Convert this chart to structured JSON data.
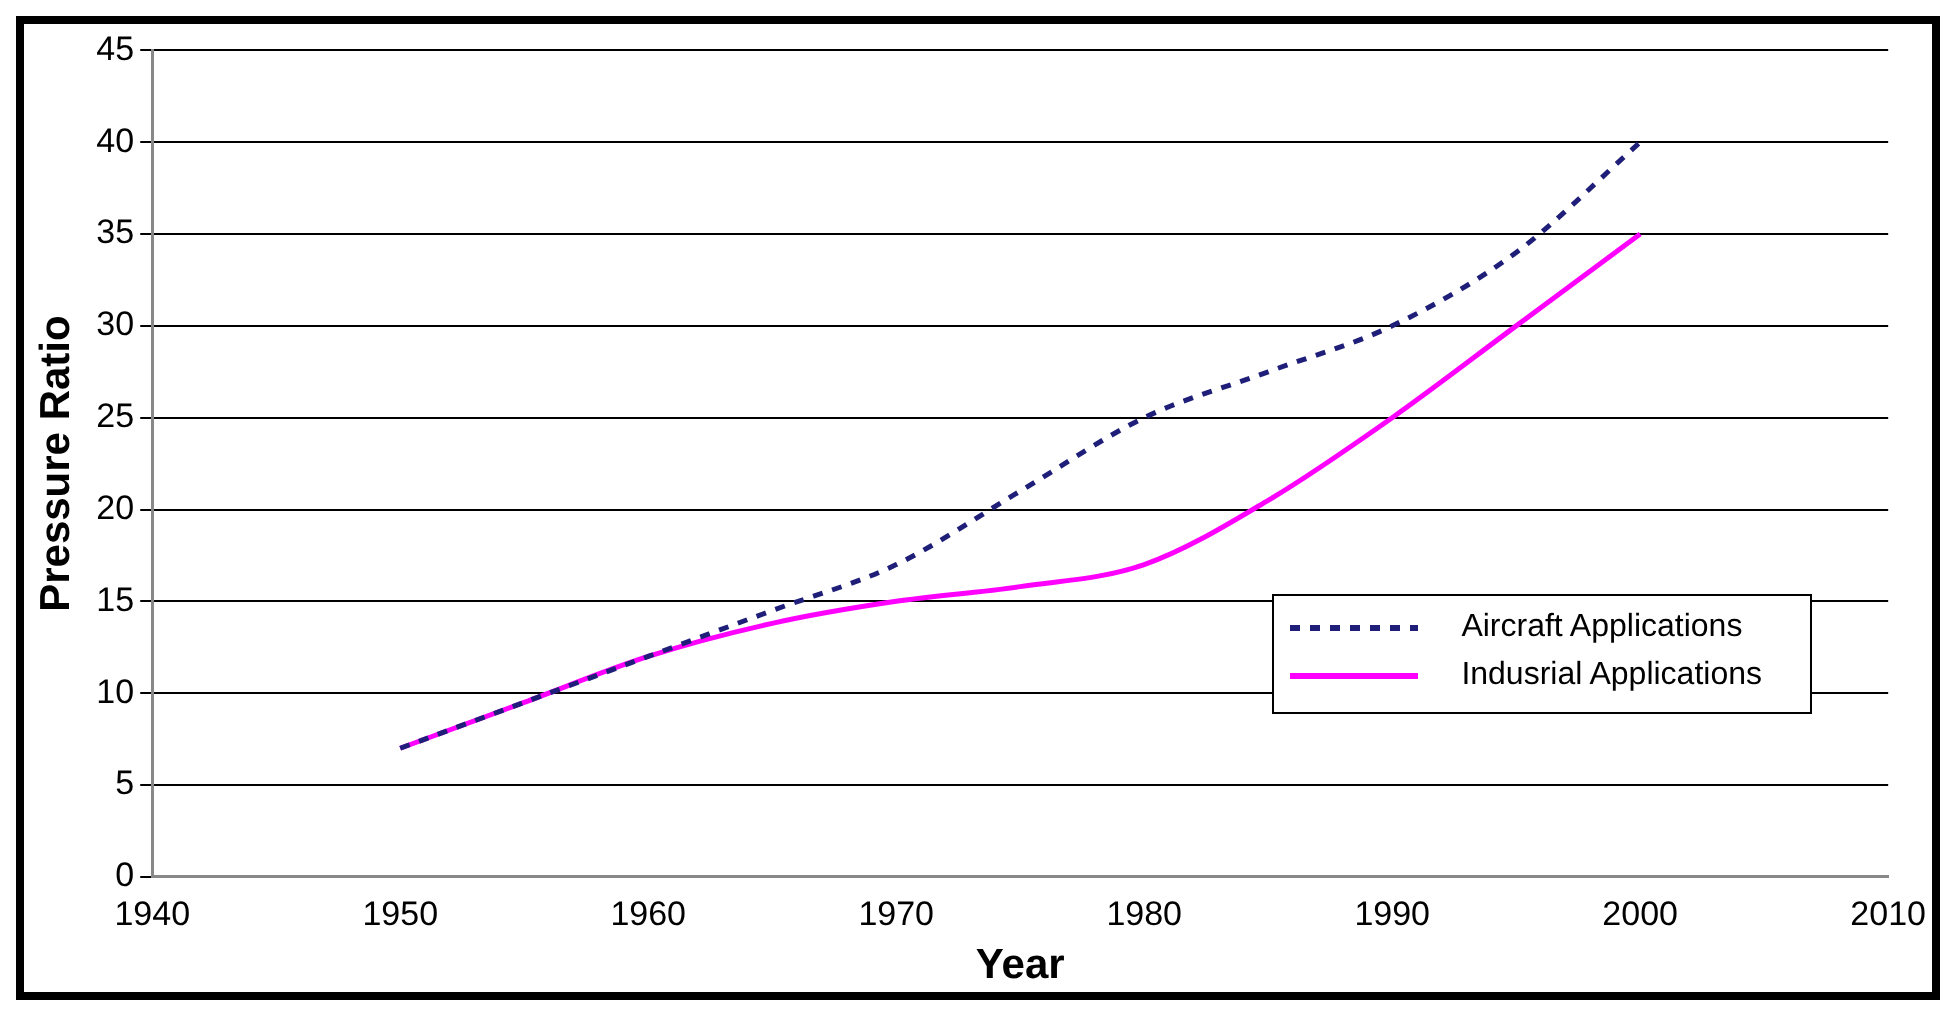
{
  "chart_data": {
    "type": "line",
    "xlabel": "Year",
    "ylabel": "Pressure Ratio",
    "x": [
      1950,
      1955,
      1960,
      1965,
      1970,
      1975,
      1980,
      1985,
      1990,
      1995,
      2000
    ],
    "series": [
      {
        "name": "Aircraft Applications",
        "color": "#1f1f7a",
        "line_style": "dashed",
        "values": [
          7,
          9.5,
          12,
          14.5,
          17,
          21,
          25,
          27.5,
          30,
          34,
          40
        ]
      },
      {
        "name": "Indusrial Applications",
        "color": "#ff00ff",
        "line_style": "solid",
        "values": [
          7,
          9.5,
          12,
          13.8,
          15,
          15.8,
          17,
          20.5,
          25,
          30,
          35
        ]
      }
    ],
    "xlim": [
      1940,
      2010
    ],
    "xticks": [
      1940,
      1950,
      1960,
      1970,
      1980,
      1990,
      2000,
      2010
    ],
    "ylim": [
      0,
      45
    ],
    "yticks": [
      0,
      5,
      10,
      15,
      20,
      25,
      30,
      35,
      40,
      45
    ],
    "grid": "y",
    "legend": "right",
    "marker": "none"
  }
}
